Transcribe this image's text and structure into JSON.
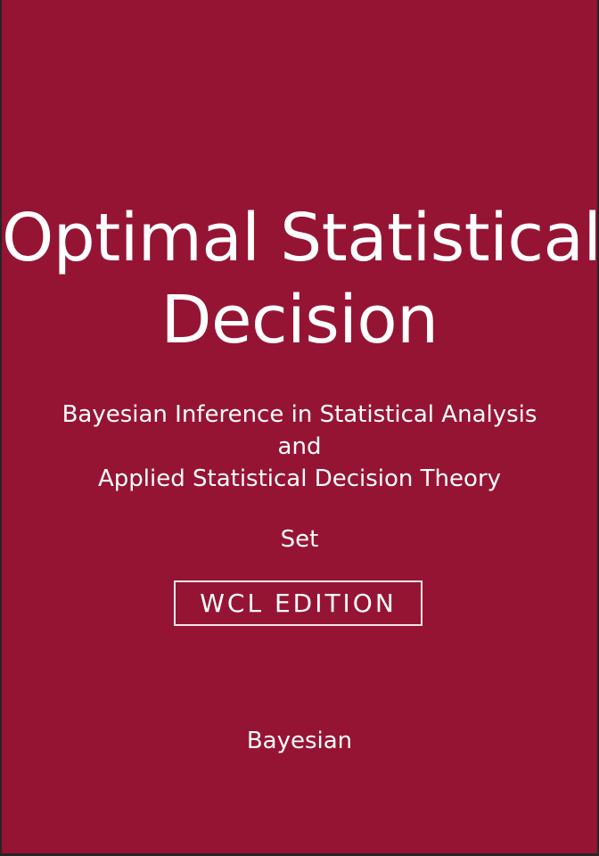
{
  "cover": {
    "background_color": "#961433",
    "text_color": "#ffffff",
    "title_lines": [
      "Optimal Statistical",
      "Decision"
    ],
    "subtitle_lines": [
      "Bayesian Inference in Statistical Analysis",
      "and",
      "Applied Statistical Decision Theory"
    ],
    "set_label": "Set",
    "edition": "WCL EDITION",
    "author": "Bayesian"
  }
}
